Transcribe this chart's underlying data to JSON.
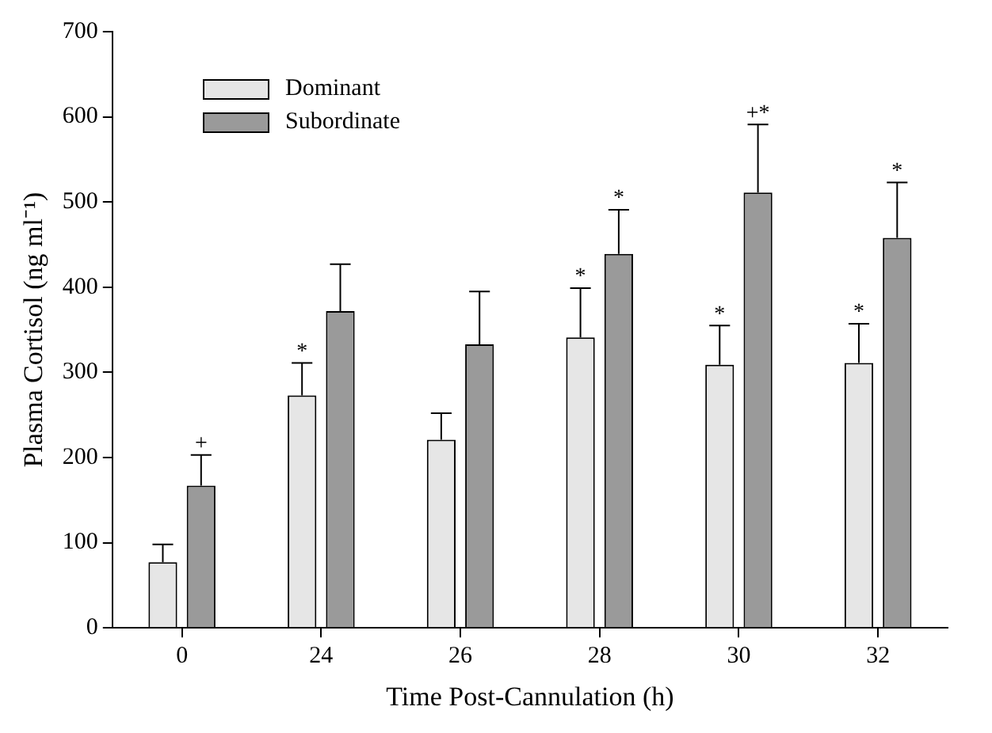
{
  "chart_data": {
    "type": "bar",
    "xlabel": "Time Post-Cannulation (h)",
    "ylabel": "Plasma Cortisol (ng ml⁻¹)",
    "categories": [
      "0",
      "24",
      "26",
      "28",
      "30",
      "32"
    ],
    "series": [
      {
        "name": "Dominant",
        "color": "#e6e6e6",
        "values": [
          77,
          273,
          221,
          341,
          309,
          311
        ],
        "errors": [
          [
            77,
            98
          ],
          [
            273,
            311
          ],
          [
            221,
            252
          ],
          [
            341,
            399
          ],
          [
            309,
            355
          ],
          [
            311,
            357
          ]
        ]
      },
      {
        "name": "Subordinate",
        "color": "#9a9a9a",
        "values": [
          167,
          372,
          333,
          439,
          511,
          458
        ],
        "errors": [
          [
            167,
            203
          ],
          [
            372,
            427
          ],
          [
            333,
            395
          ],
          [
            439,
            491
          ],
          [
            511,
            591
          ],
          [
            458,
            523
          ]
        ]
      }
    ],
    "ylim": [
      0,
      700
    ],
    "yticks": [
      0,
      100,
      200,
      300,
      400,
      500,
      600,
      700
    ],
    "grid": false,
    "legend": "top left",
    "annotations": [
      {
        "text": "+",
        "x": "0",
        "y": 167
      },
      {
        "text": "*",
        "x": "24",
        "y": 273
      },
      {
        "text": "*",
        "x": "28",
        "y": 341
      },
      {
        "text": "*",
        "x": "28",
        "y": 439
      },
      {
        "text": "*",
        "x": "30",
        "y": 309
      },
      "+*",
      {
        "text": "*",
        "x": "32",
        "y": 311
      },
      {
        "text": "*",
        "x": "32",
        "y": 458
      }
    ]
  }
}
